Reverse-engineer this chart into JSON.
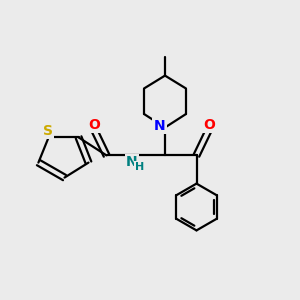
{
  "background_color": "#ebebeb",
  "bond_color": "#000000",
  "atom_colors": {
    "S": "#ccaa00",
    "N_pip": "#0000ff",
    "N_amide": "#008080",
    "O": "#ff0000",
    "H": "#008080"
  },
  "figsize": [
    3.0,
    3.0
  ],
  "dpi": 100,
  "xlim": [
    0,
    10
  ],
  "ylim": [
    0,
    10
  ]
}
